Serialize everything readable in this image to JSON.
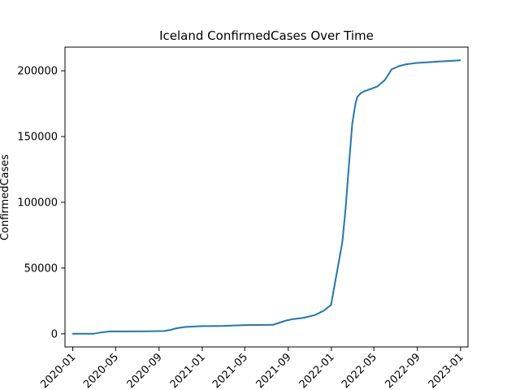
{
  "chart_data": {
    "type": "line",
    "title": "Iceland  ConfirmedCases Over Time",
    "xlabel": "",
    "ylabel": "ConfirmedCases",
    "xlim": [
      "2019-12-10",
      "2023-01-22"
    ],
    "ylim": [
      -10000,
      218000
    ],
    "grid": false,
    "x_ticks": [
      "2020-01",
      "2020-05",
      "2020-09",
      "2021-01",
      "2021-05",
      "2021-09",
      "2022-01",
      "2022-05",
      "2022-09",
      "2023-01"
    ],
    "y_ticks": [
      0,
      50000,
      100000,
      150000,
      200000
    ],
    "y_tick_labels": [
      "0",
      "50000",
      "100000",
      "150000",
      "200000"
    ],
    "color": "#1f77b4",
    "series": [
      {
        "x": [
          "2020-01-01",
          "2020-03-01",
          "2020-03-20",
          "2020-04-15",
          "2020-06-01",
          "2020-08-01",
          "2020-09-15",
          "2020-10-01",
          "2020-10-20",
          "2020-11-15",
          "2021-01-01",
          "2021-03-01",
          "2021-05-01",
          "2021-06-01",
          "2021-07-20",
          "2021-08-05",
          "2021-08-25",
          "2021-09-15",
          "2021-10-15",
          "2021-11-15",
          "2021-12-10",
          "2021-12-31",
          "2022-01-10",
          "2022-01-20",
          "2022-02-01",
          "2022-02-10",
          "2022-02-20",
          "2022-03-01",
          "2022-03-10",
          "2022-03-15",
          "2022-03-25",
          "2022-04-05",
          "2022-04-20",
          "2022-05-10",
          "2022-06-01",
          "2022-06-20",
          "2022-07-10",
          "2022-08-01",
          "2022-09-01",
          "2022-10-01",
          "2022-11-01",
          "2022-12-01",
          "2022-12-31"
        ],
        "y": [
          0,
          100,
          1000,
          1800,
          1800,
          1900,
          2100,
          2800,
          4200,
          5200,
          5800,
          6000,
          6600,
          6700,
          6800,
          8200,
          10000,
          11200,
          12200,
          14200,
          17500,
          22000,
          37000,
          52000,
          70000,
          95000,
          130000,
          160000,
          175000,
          180000,
          183000,
          184500,
          186000,
          188000,
          193000,
          201000,
          203500,
          205000,
          206000,
          206500,
          207000,
          207500,
          208000
        ]
      }
    ]
  }
}
